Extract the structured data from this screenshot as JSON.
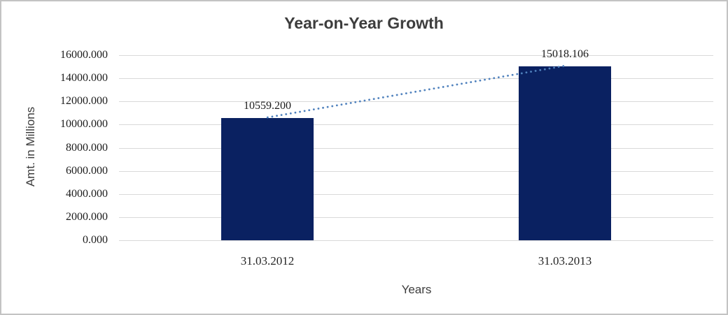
{
  "chart_data": {
    "type": "bar",
    "title": "Year-on-Year Growth",
    "xlabel": "Years",
    "ylabel": "Amt. in Millions",
    "categories": [
      "31.03.2012",
      "31.03.2013"
    ],
    "values": [
      10559.2,
      15018.106
    ],
    "data_labels": [
      "10559.200",
      "15018.106"
    ],
    "ylim": [
      0,
      16000
    ],
    "ytick_step": 2000,
    "ytick_labels": [
      "0.000",
      "2000.000",
      "4000.000",
      "6000.000",
      "8000.000",
      "10000.000",
      "12000.000",
      "14000.000",
      "16000.000"
    ],
    "grid": true,
    "legend": "none",
    "trendline": {
      "style": "dotted",
      "from_category": "31.03.2012",
      "to_category": "31.03.2013"
    },
    "colors": {
      "bar": "#0a2161",
      "trendline": "#4f81bd",
      "gridline": "#d9d9d9",
      "title_text": "#3d3d3d",
      "tick_text": "#1c1c1c"
    }
  }
}
